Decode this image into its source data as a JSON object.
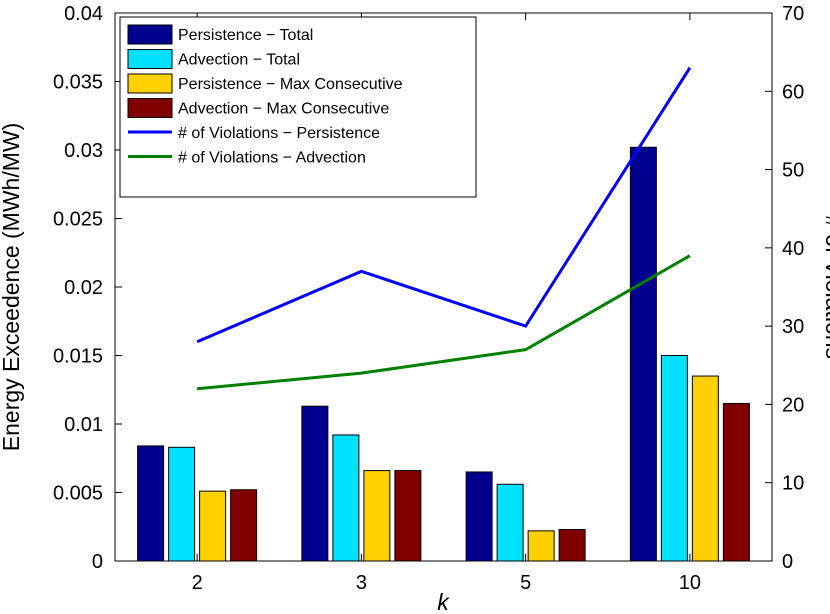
{
  "chart_data": {
    "type": "bar",
    "xlabel": "k",
    "ylabel": "Energy Exceedence (MWh/MW)",
    "y2label": "# of Violations",
    "categories": [
      "2",
      "3",
      "5",
      "10"
    ],
    "ylim": [
      0,
      0.04
    ],
    "y2lim": [
      0,
      70
    ],
    "yticks": [
      "0",
      "0.005",
      "0.01",
      "0.015",
      "0.02",
      "0.025",
      "0.03",
      "0.035",
      "0.04"
    ],
    "y2ticks": [
      "0",
      "10",
      "20",
      "30",
      "40",
      "50",
      "60",
      "70"
    ],
    "grid": false,
    "legend_position": "top-left",
    "series": [
      {
        "name": "Persistence − Total",
        "kind": "bar",
        "axis": "left",
        "color": "#00008F",
        "values": [
          0.0084,
          0.0113,
          0.0065,
          0.0302
        ]
      },
      {
        "name": "Advection − Total",
        "kind": "bar",
        "axis": "left",
        "color": "#00E0FF",
        "values": [
          0.0083,
          0.0092,
          0.0056,
          0.015
        ]
      },
      {
        "name": "Persistence − Max Consecutive",
        "kind": "bar",
        "axis": "left",
        "color": "#FFD000",
        "values": [
          0.0051,
          0.0066,
          0.0022,
          0.0135
        ]
      },
      {
        "name": "Advection − Max Consecutive",
        "kind": "bar",
        "axis": "left",
        "color": "#800000",
        "values": [
          0.0052,
          0.0066,
          0.0023,
          0.0115
        ]
      },
      {
        "name": "# of Violations − Persistence",
        "kind": "line",
        "axis": "right",
        "color": "#0000FF",
        "values": [
          28,
          37,
          30,
          63
        ]
      },
      {
        "name": "# of Violations − Advection",
        "kind": "line",
        "axis": "right",
        "color": "#008000",
        "values": [
          22,
          24,
          27,
          39
        ]
      }
    ]
  }
}
